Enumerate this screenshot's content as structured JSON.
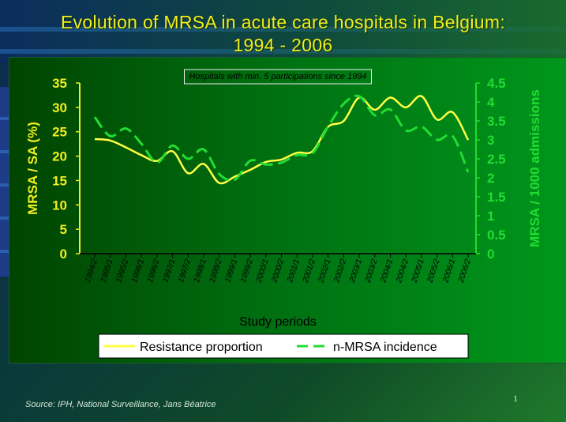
{
  "slide": {
    "title_line1": "Evolution of MRSA in acute care hospitals in Belgium:",
    "title_line2": "1994 - 2006",
    "source": "Source: IPH, National Surveillance, Jans Béatrice",
    "page_number": "1"
  },
  "chart_data": {
    "type": "line",
    "annotation": "Hospitals with min. 5 participations since 1994",
    "xlabel": "Study periods",
    "ylabel_left": "MRSA / SA (%)",
    "ylabel_right": "MRSA / 1000 admissions",
    "ylim_left": [
      0,
      35
    ],
    "ylim_right": [
      0,
      4.5
    ],
    "yticks_left": [
      "0",
      "5",
      "10",
      "15",
      "20",
      "25",
      "30",
      "35"
    ],
    "yticks_right": [
      "0",
      "0.5",
      "1",
      "1.5",
      "2",
      "2.5",
      "3",
      "3.5",
      "4",
      "4.5"
    ],
    "categories": [
      "1994/2",
      "1995/1",
      "1995/2",
      "1996/1",
      "1996/2",
      "1997/1",
      "1997/2",
      "1998/1",
      "1998/2",
      "1999/1",
      "1999/2",
      "2000/1",
      "2000/2",
      "2001/1",
      "2001/2",
      "2002/1",
      "2002/2",
      "2003/1",
      "2003/2",
      "2004/1",
      "2004/2",
      "2005/1",
      "2005/2",
      "2006/1",
      "2006/2"
    ],
    "series": [
      {
        "name": "Resistance proportion",
        "axis": "left",
        "color": "#ffff44",
        "style": "solid",
        "values": [
          23.5,
          23.2,
          21.8,
          20.2,
          19.0,
          21.0,
          16.5,
          18.4,
          14.5,
          15.8,
          17.2,
          18.8,
          19.3,
          20.7,
          21.0,
          26.0,
          27.2,
          32.0,
          29.5,
          32.0,
          30.0,
          32.3,
          27.5,
          29.0,
          23.3
        ]
      },
      {
        "name": "n-MRSA incidence",
        "axis": "right",
        "color": "#22dd33",
        "style": "dashed",
        "values": [
          3.6,
          3.1,
          3.3,
          2.9,
          2.4,
          2.85,
          2.5,
          2.75,
          2.1,
          1.95,
          2.45,
          2.35,
          2.4,
          2.6,
          2.65,
          3.35,
          3.95,
          4.15,
          3.65,
          3.8,
          3.25,
          3.35,
          3.0,
          3.1,
          2.15
        ]
      }
    ],
    "legend": "bottom",
    "grid": false
  },
  "colors": {
    "title": "#f2ee1c",
    "left_axis": "#f2ee1c",
    "right_axis": "#22dd33"
  }
}
